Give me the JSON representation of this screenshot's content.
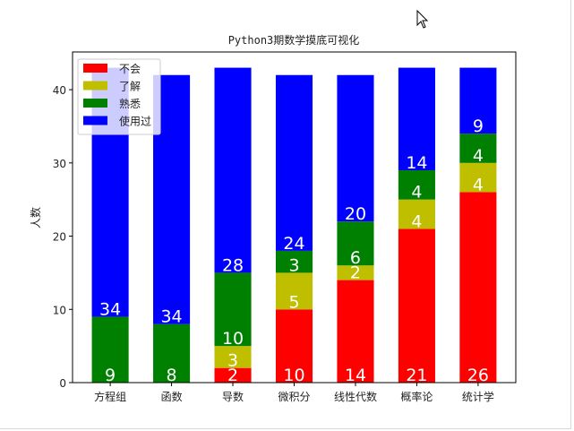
{
  "chart_data": {
    "type": "bar",
    "stacked": true,
    "title": "Python3期数学摸底可视化",
    "xlabel": "",
    "ylabel": "人数",
    "ylim": [
      0,
      45.15
    ],
    "yticks": [
      0,
      10,
      20,
      30,
      40
    ],
    "categories": [
      "方程组",
      "函数",
      "导数",
      "微积分",
      "线性代数",
      "概率论",
      "统计学"
    ],
    "series": [
      {
        "name": "不会",
        "color": "#ff0000",
        "values": [
          0,
          0,
          2,
          10,
          14,
          21,
          26
        ]
      },
      {
        "name": "了解",
        "color": "#bfbf00",
        "values": [
          0,
          0,
          3,
          5,
          2,
          4,
          4
        ]
      },
      {
        "name": "熟悉",
        "color": "#008000",
        "values": [
          9,
          8,
          10,
          3,
          6,
          4,
          4
        ]
      },
      {
        "name": "使用过",
        "color": "#0000ff",
        "values": [
          34,
          34,
          28,
          24,
          20,
          14,
          9
        ]
      }
    ],
    "legend_position": "top-left",
    "grid": false
  }
}
